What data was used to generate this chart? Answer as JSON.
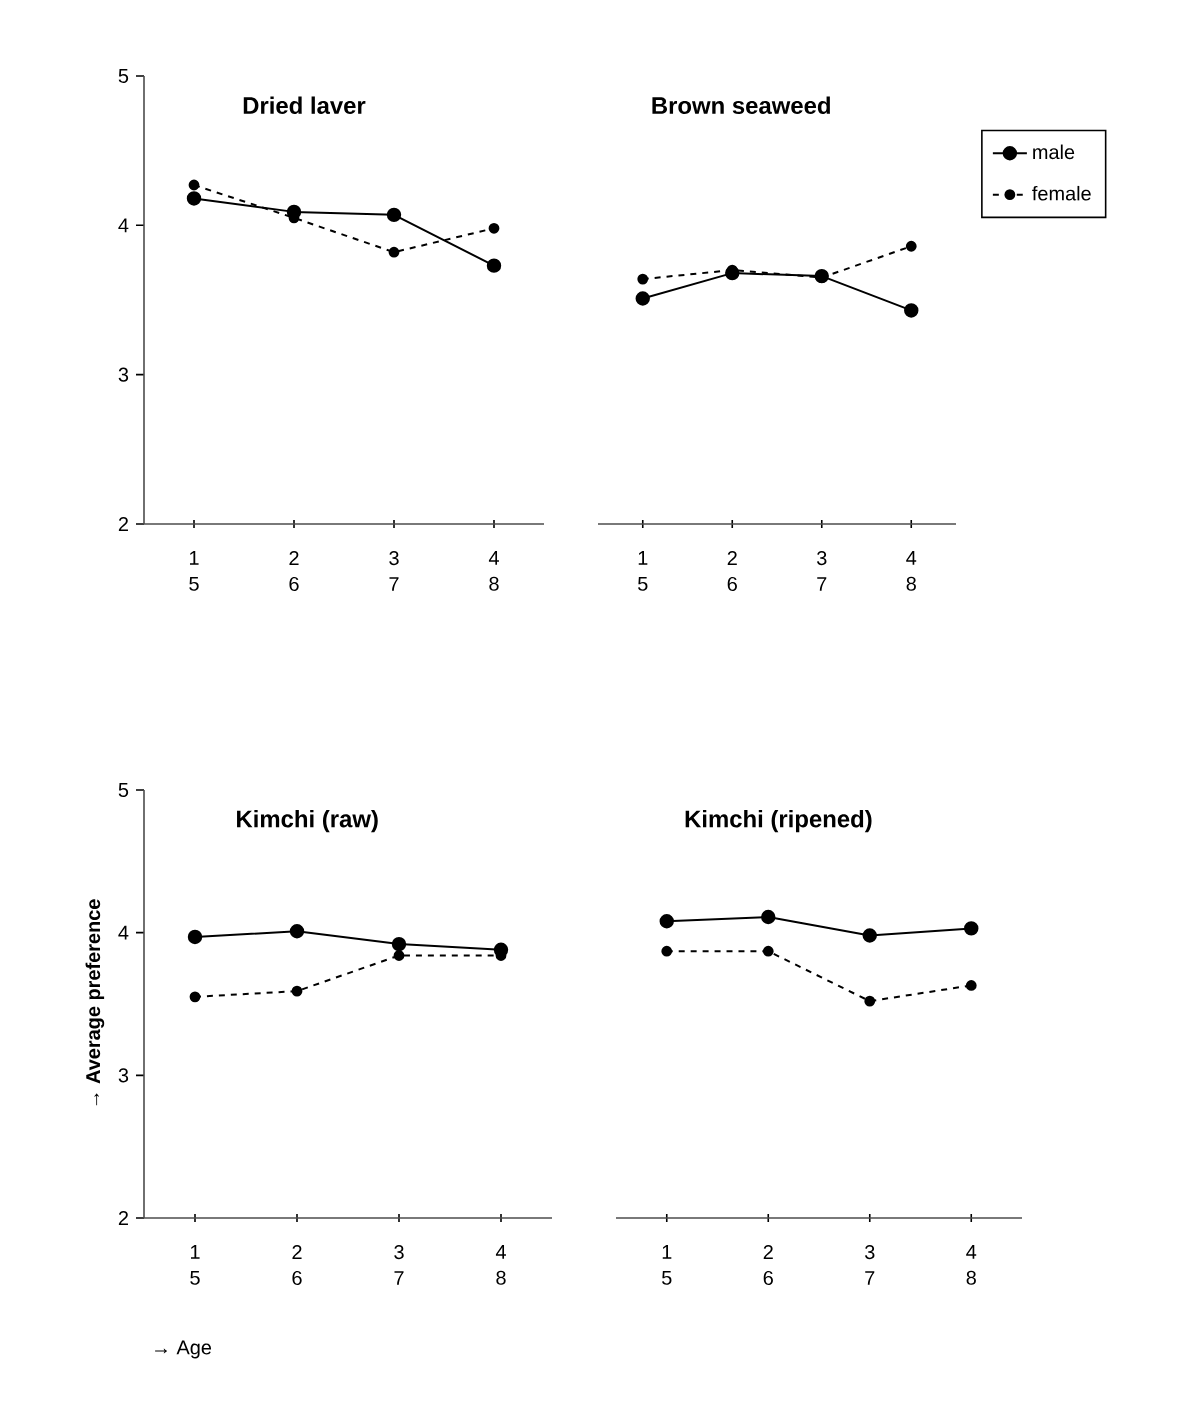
{
  "chart_data": [
    {
      "type": "line",
      "title": "Dried laver",
      "categories": [
        "1\n5",
        "2\n6",
        "3\n7",
        "4\n8"
      ],
      "ylim": [
        2,
        5
      ],
      "yticks": [
        2,
        3,
        4,
        5
      ],
      "marker": "circle",
      "legend": false,
      "series": [
        {
          "color": "#000000",
          "line_style": "solid",
          "values": [
            4.18,
            4.09,
            4.07,
            3.73
          ]
        },
        {
          "color": "#000000",
          "line_style": "dashed",
          "values": [
            4.27,
            4.05,
            3.82,
            3.98
          ]
        }
      ]
    },
    {
      "type": "line",
      "title": "Brown seaweed",
      "categories": [
        "1\n5",
        "2\n6",
        "3\n7",
        "4\n8"
      ],
      "ylim": [
        2,
        5
      ],
      "tick_labels": "x",
      "marker": "circle",
      "legend": "top right",
      "series": [
        {
          "name": "male",
          "color": "#000000",
          "line_style": "solid",
          "values": [
            3.51,
            3.68,
            3.66,
            3.43
          ]
        },
        {
          "name": "female",
          "color": "#000000",
          "line_style": "dashed",
          "values": [
            3.64,
            3.7,
            3.65,
            3.86
          ]
        }
      ]
    },
    {
      "type": "line",
      "title": "Kimchi (raw)",
      "xlabel": "→ Age",
      "ylabel": "→ Average preference",
      "categories": [
        "1\n5",
        "2\n6",
        "3\n7",
        "4\n8"
      ],
      "ylim": [
        2,
        5
      ],
      "yticks": [
        2,
        3,
        4,
        5
      ],
      "marker": "circle",
      "legend": false,
      "series": [
        {
          "color": "#000000",
          "line_style": "solid",
          "values": [
            3.97,
            4.01,
            3.92,
            3.88
          ]
        },
        {
          "color": "#000000",
          "line_style": "dashed",
          "values": [
            3.55,
            3.59,
            3.84,
            3.84
          ]
        }
      ]
    },
    {
      "type": "line",
      "title": "Kimchi (ripened)",
      "categories": [
        "1\n5",
        "2\n6",
        "3\n7",
        "4\n8"
      ],
      "ylim": [
        2,
        5
      ],
      "tick_labels": "x",
      "marker": "circle",
      "legend": false,
      "series": [
        {
          "color": "#000000",
          "line_style": "solid",
          "values": [
            4.08,
            4.11,
            3.98,
            4.03
          ]
        },
        {
          "color": "#000000",
          "line_style": "dashed",
          "values": [
            3.87,
            3.87,
            3.52,
            3.63
          ]
        }
      ]
    }
  ]
}
